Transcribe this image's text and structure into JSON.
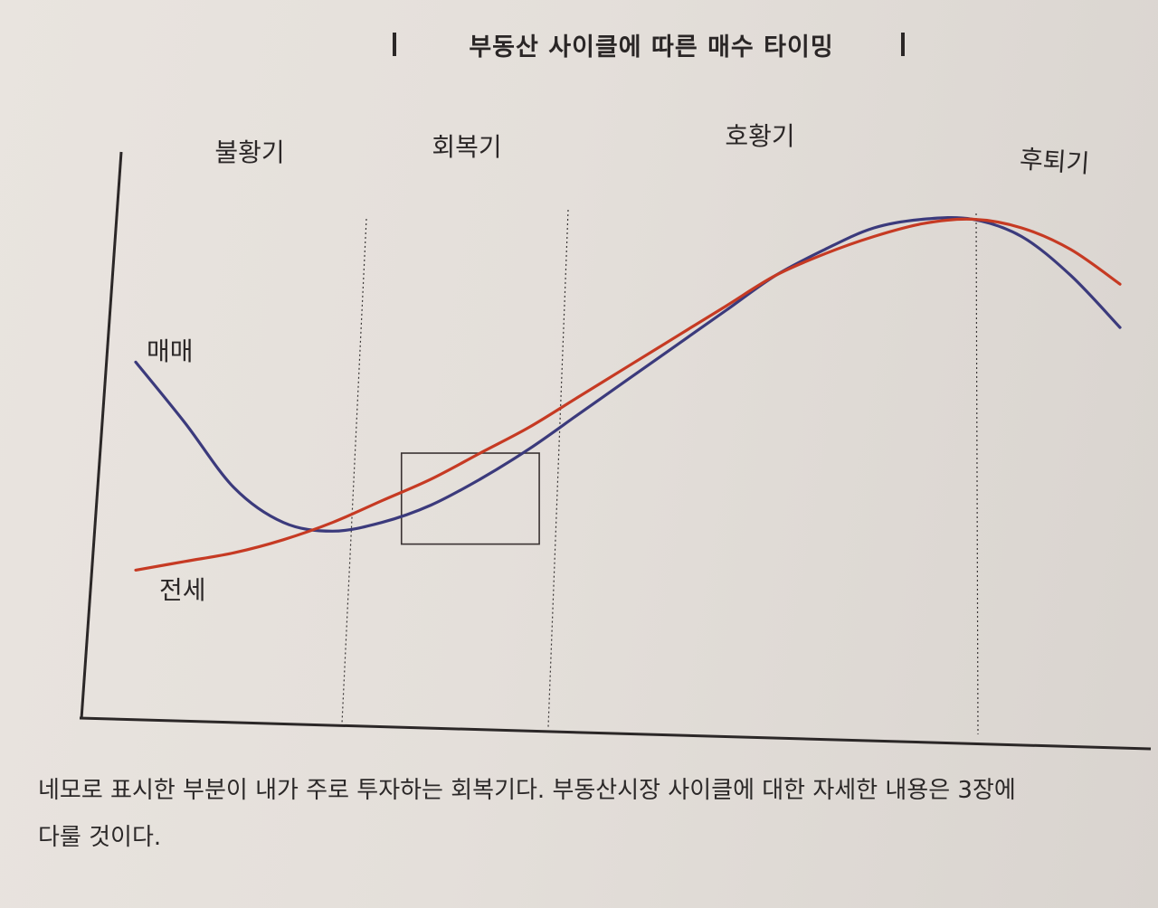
{
  "chart_data": {
    "type": "line",
    "title": "부동산 사이클에 따른 매수 타이밍",
    "phases": [
      "불황기",
      "회복기",
      "호황기",
      "후퇴기"
    ],
    "x": [
      0,
      5,
      10,
      15,
      20,
      25,
      30,
      35,
      40,
      45,
      50,
      55,
      60,
      65,
      70,
      75,
      80,
      85,
      90,
      95,
      100
    ],
    "series": [
      {
        "name": "매매",
        "color": "#3b3a7c",
        "values": [
          64,
          50,
          35,
          27,
          25,
          27,
          31,
          37,
          44,
          52,
          60,
          68,
          76,
          84,
          90,
          95,
          97,
          97,
          93,
          84,
          72
        ]
      },
      {
        "name": "전세",
        "color": "#c63a23",
        "values": [
          16,
          18,
          20,
          23,
          27,
          32,
          37,
          43,
          49,
          56,
          63,
          70,
          77,
          84,
          89,
          93,
          96,
          97,
          95,
          90,
          82
        ]
      }
    ],
    "highlight_box": {
      "x_range": [
        27,
        41
      ],
      "y_range": [
        22,
        43
      ]
    },
    "xlim": [
      0,
      100
    ],
    "ylim": [
      0,
      100
    ],
    "grid": false
  },
  "caption": {
    "line1": "네모로 표시한 부분이 내가 주로 투자하는 회복기다. 부동산시장 사이클에 대한 자세한 내용은 3장에",
    "line2": "다룰 것이다."
  }
}
